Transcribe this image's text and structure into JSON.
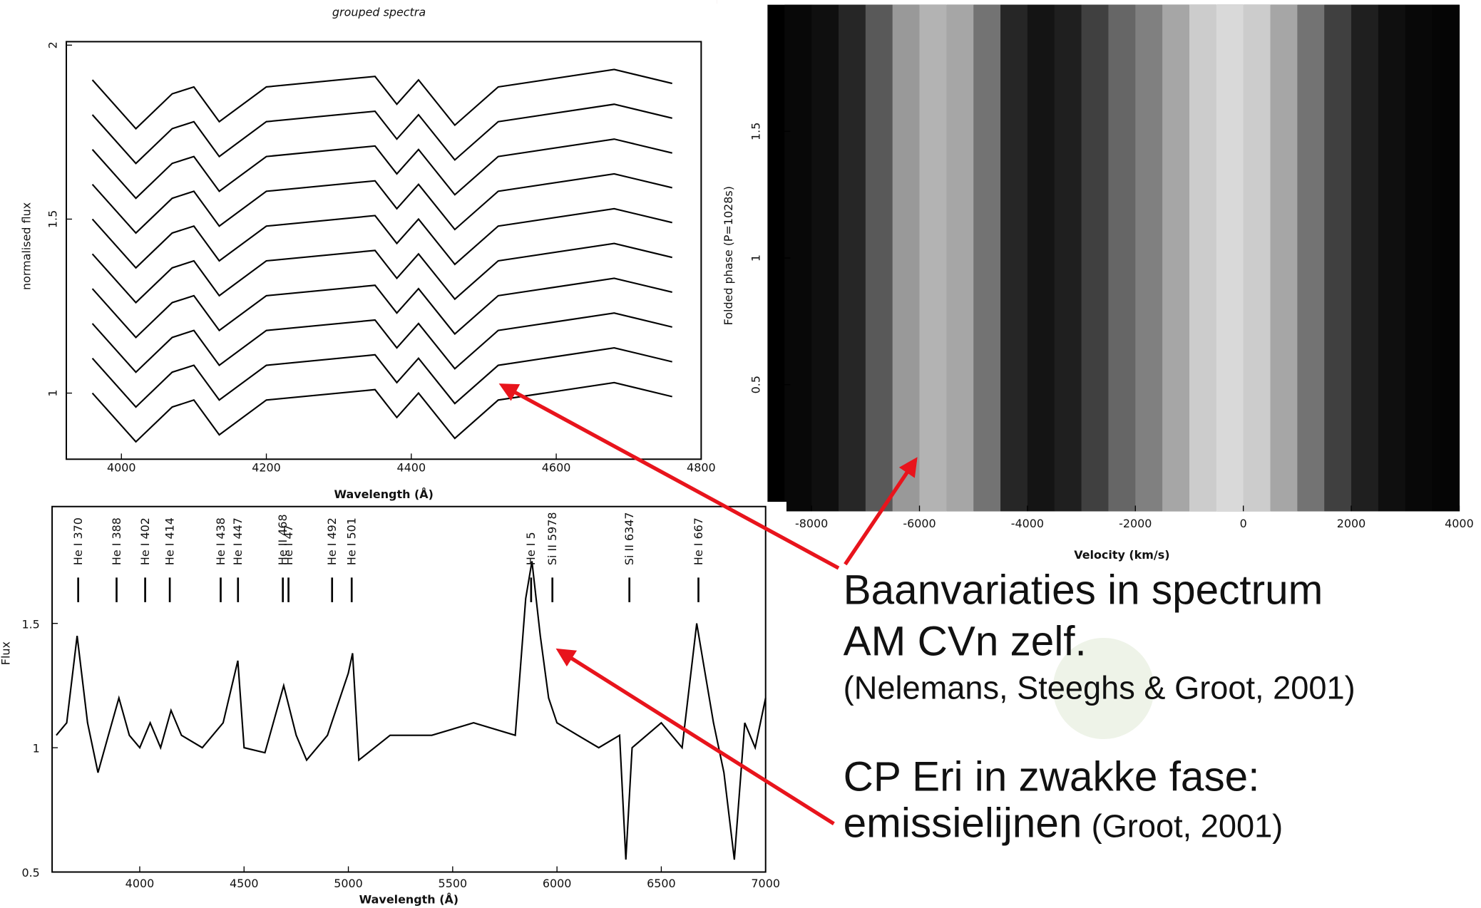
{
  "chart_data": [
    {
      "type": "line",
      "title": "grouped spectra",
      "xlabel": "Wavelength (Å)",
      "ylabel": "normalised flux",
      "xlim": [
        3924,
        4800
      ],
      "ylim": [
        0.81,
        2.01
      ],
      "xticks": [
        4000,
        4200,
        4400,
        4600,
        4800
      ],
      "yticks": [
        1,
        1.5,
        2
      ],
      "color": "#000000",
      "x": [
        3960,
        4020,
        4070,
        4100,
        4135,
        4200,
        4350,
        4380,
        4410,
        4460,
        4520,
        4680,
        4760
      ],
      "series": [
        {
          "values": [
            1.0,
            0.86,
            0.96,
            0.98,
            0.88,
            0.98,
            1.01,
            0.93,
            1.0,
            0.87,
            0.98,
            1.03,
            0.99
          ]
        },
        {
          "values": [
            1.1,
            0.96,
            1.06,
            1.08,
            0.98,
            1.08,
            1.11,
            1.03,
            1.1,
            0.97,
            1.08,
            1.13,
            1.09
          ]
        },
        {
          "values": [
            1.2,
            1.06,
            1.16,
            1.18,
            1.08,
            1.18,
            1.21,
            1.13,
            1.2,
            1.07,
            1.18,
            1.23,
            1.19
          ]
        },
        {
          "values": [
            1.3,
            1.16,
            1.26,
            1.28,
            1.18,
            1.28,
            1.31,
            1.23,
            1.3,
            1.17,
            1.28,
            1.33,
            1.29
          ]
        },
        {
          "values": [
            1.4,
            1.26,
            1.36,
            1.38,
            1.28,
            1.38,
            1.41,
            1.33,
            1.4,
            1.27,
            1.38,
            1.43,
            1.39
          ]
        },
        {
          "values": [
            1.5,
            1.36,
            1.46,
            1.48,
            1.38,
            1.48,
            1.51,
            1.43,
            1.5,
            1.37,
            1.48,
            1.53,
            1.49
          ]
        },
        {
          "values": [
            1.6,
            1.46,
            1.56,
            1.58,
            1.48,
            1.58,
            1.61,
            1.53,
            1.6,
            1.47,
            1.58,
            1.63,
            1.59
          ]
        },
        {
          "values": [
            1.7,
            1.56,
            1.66,
            1.68,
            1.58,
            1.68,
            1.71,
            1.63,
            1.7,
            1.57,
            1.68,
            1.73,
            1.69
          ]
        },
        {
          "values": [
            1.8,
            1.66,
            1.76,
            1.78,
            1.68,
            1.78,
            1.81,
            1.73,
            1.8,
            1.67,
            1.78,
            1.83,
            1.79
          ]
        },
        {
          "values": [
            1.9,
            1.76,
            1.86,
            1.88,
            1.78,
            1.88,
            1.91,
            1.83,
            1.9,
            1.77,
            1.88,
            1.93,
            1.89
          ]
        }
      ]
    },
    {
      "type": "heatmap",
      "xlabel": "Velocity (km/s)",
      "ylabel": "Folded phase (P=1028s)",
      "xlim": [
        -8500,
        4000
      ],
      "ylim": [
        0,
        2
      ],
      "xticks": [
        -8000,
        -6000,
        -4000,
        -2000,
        0,
        2000,
        4000
      ],
      "yticks": [
        0.5,
        1,
        1.5
      ],
      "colormap": "gray",
      "x_edges": [
        -8500,
        -8000,
        -7500,
        -7000,
        -6500,
        -6000,
        -5500,
        -5000,
        -4500,
        -4000,
        -3500,
        -3000,
        -2500,
        -2000,
        -1500,
        -1000,
        -500,
        0,
        500,
        1000,
        1500,
        2000,
        2500,
        3000,
        3500,
        4000
      ],
      "values": [
        0.03,
        0.06,
        0.15,
        0.35,
        0.6,
        0.7,
        0.65,
        0.45,
        0.15,
        0.08,
        0.12,
        0.25,
        0.4,
        0.5,
        0.65,
        0.8,
        0.85,
        0.8,
        0.65,
        0.45,
        0.25,
        0.12,
        0.06,
        0.03,
        0.02
      ]
    },
    {
      "type": "line",
      "xlabel": "Wavelength (Å)",
      "ylabel": "Flux",
      "xlim": [
        3580,
        7000
      ],
      "ylim": [
        0.5,
        1.97
      ],
      "xticks": [
        4000,
        4500,
        5000,
        5500,
        6000,
        6500,
        7000
      ],
      "yticks": [
        0.5,
        1,
        1.5
      ],
      "color": "#000000",
      "x": [
        3600,
        3650,
        3700,
        3750,
        3800,
        3850,
        3900,
        3950,
        4000,
        4050,
        4100,
        4150,
        4200,
        4300,
        4400,
        4470,
        4500,
        4600,
        4690,
        4750,
        4800,
        4900,
        5000,
        5020,
        5050,
        5200,
        5400,
        5600,
        5800,
        5850,
        5880,
        5920,
        5960,
        6000,
        6100,
        6200,
        6300,
        6330,
        6360,
        6500,
        6600,
        6670,
        6700,
        6750,
        6800,
        6850,
        6900,
        6950,
        7000
      ],
      "values": [
        1.05,
        1.1,
        1.45,
        1.1,
        0.9,
        1.05,
        1.2,
        1.05,
        1.0,
        1.1,
        1.0,
        1.15,
        1.05,
        1.0,
        1.1,
        1.35,
        1.0,
        0.98,
        1.25,
        1.05,
        0.95,
        1.05,
        1.3,
        1.38,
        0.95,
        1.05,
        1.05,
        1.1,
        1.05,
        1.6,
        1.75,
        1.45,
        1.2,
        1.1,
        1.05,
        1.0,
        1.05,
        0.55,
        1.0,
        1.1,
        1.0,
        1.5,
        1.35,
        1.1,
        0.9,
        0.55,
        1.1,
        1.0,
        1.2
      ],
      "annotations": [
        {
          "text": "He I 370",
          "x": 3705
        },
        {
          "text": "He I 388",
          "x": 3889
        },
        {
          "text": "He I 402",
          "x": 4026
        },
        {
          "text": "He I 414",
          "x": 4144
        },
        {
          "text": "He I 438",
          "x": 4388
        },
        {
          "text": "He I 447",
          "x": 4471
        },
        {
          "text": "He II 468",
          "x": 4686
        },
        {
          "text": "He I 47",
          "x": 4713
        },
        {
          "text": "He I 492",
          "x": 4922
        },
        {
          "text": "He I 501",
          "x": 5016
        },
        {
          "text": "He I 5",
          "x": 5876
        },
        {
          "text": "Si II 5978",
          "x": 5978
        },
        {
          "text": "Si II 6347",
          "x": 6347
        },
        {
          "text": "He I 667",
          "x": 6678
        }
      ]
    }
  ],
  "slide": {
    "text": [
      "Baanvariaties in spectrum",
      "AM CVn zelf.",
      "(Nelemans, Steeghs & Groot, 2001)",
      "CP Eri in zwakke fase:",
      "emissielijnen",
      "(Groot, 2001)"
    ]
  }
}
